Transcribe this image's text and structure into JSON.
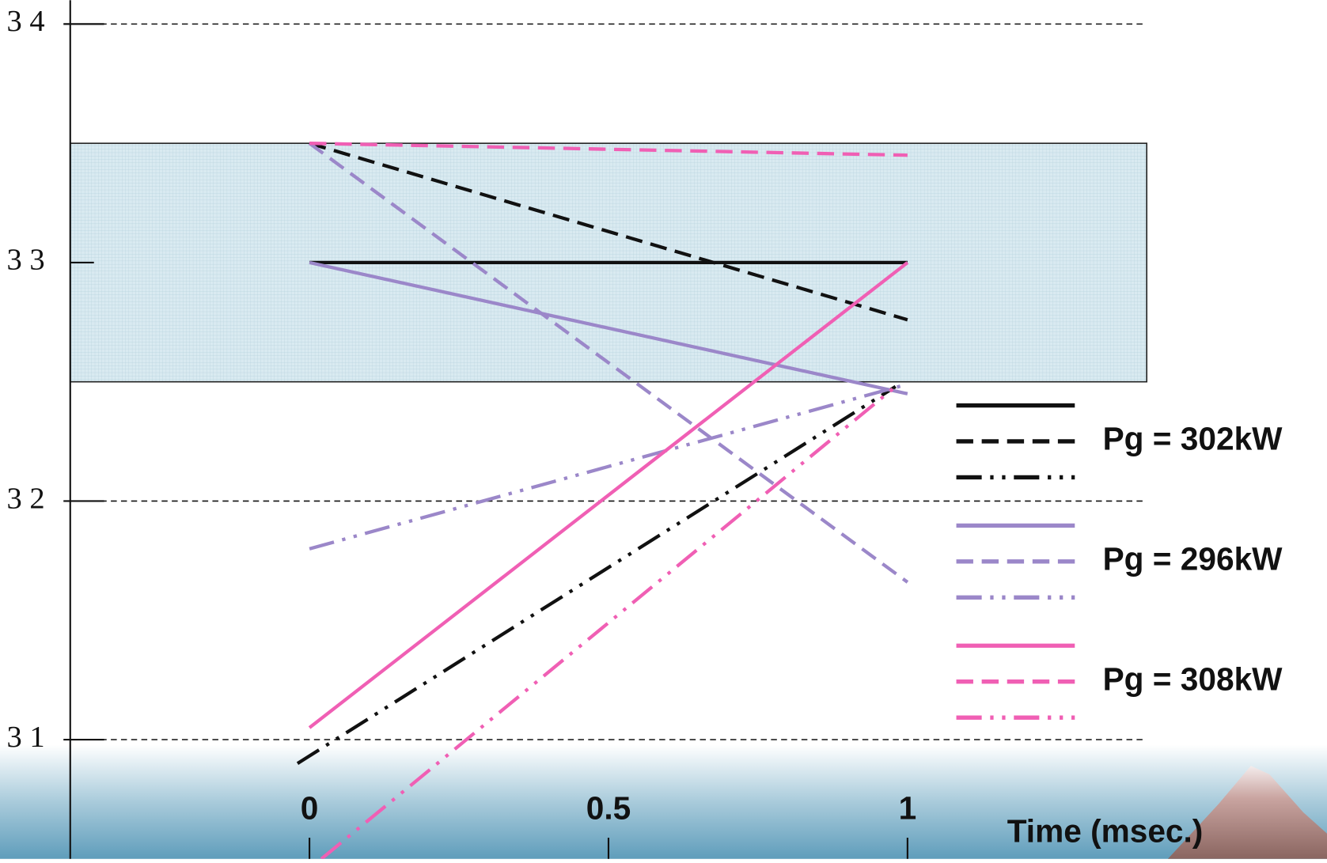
{
  "chart_data": {
    "type": "line",
    "x_label": "Time (msec.)",
    "xlim": [
      -0.4,
      1.4
    ],
    "xticks": [
      0,
      0.5,
      1
    ],
    "ylim": [
      30.5,
      34.1
    ],
    "yticks": [
      {
        "value": 34,
        "label": "3 4",
        "grid": true
      },
      {
        "value": 33,
        "label": "3 3",
        "grid": false
      },
      {
        "value": 32,
        "label": "3 2",
        "grid": true
      },
      {
        "value": 31,
        "label": "3 1",
        "grid": true
      }
    ],
    "band": [
      32.5,
      33.5
    ],
    "groups": [
      {
        "name": "Pg = 302kW",
        "color": "#111111",
        "series": [
          {
            "dash": "solid",
            "x": [
              0,
              1
            ],
            "values": [
              33,
              33
            ]
          },
          {
            "dash": "dashed",
            "x": [
              0,
              1
            ],
            "values": [
              33.5,
              32.76
            ]
          },
          {
            "dash": "dashdot",
            "x": [
              -0.02,
              0.98
            ],
            "values": [
              30.9,
              32.48
            ]
          }
        ]
      },
      {
        "name": "Pg = 296kW",
        "color": "#9b87c9",
        "series": [
          {
            "dash": "solid",
            "x": [
              0,
              1
            ],
            "values": [
              33,
              32.45
            ]
          },
          {
            "dash": "dashed",
            "x": [
              0,
              1
            ],
            "values": [
              33.5,
              31.66
            ]
          },
          {
            "dash": "dashdot",
            "x": [
              0,
              1
            ],
            "values": [
              31.8,
              32.49
            ]
          }
        ]
      },
      {
        "name": "Pg = 308kW",
        "color": "#f05fb4",
        "series": [
          {
            "dash": "solid",
            "x": [
              0,
              1
            ],
            "values": [
              31.05,
              33
            ]
          },
          {
            "dash": "dashed",
            "x": [
              0,
              1
            ],
            "values": [
              33.5,
              33.45
            ]
          },
          {
            "dash": "dashdot",
            "x": [
              0.02,
              0.98
            ],
            "values": [
              30.5,
              32.48
            ]
          }
        ]
      }
    ]
  }
}
